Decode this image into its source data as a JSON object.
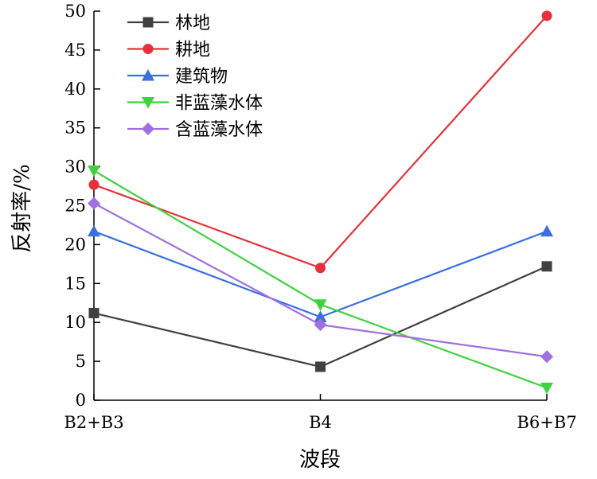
{
  "chart_data": {
    "type": "line",
    "title": "",
    "xlabel": "波段",
    "ylabel": "反射率/%",
    "categories": [
      "B2+B3",
      "B4",
      "B6+B7"
    ],
    "ylim": [
      0,
      50
    ],
    "yticks": [
      0,
      5,
      10,
      15,
      20,
      25,
      30,
      35,
      40,
      45,
      50
    ],
    "grid": false,
    "legend_position": "top-left",
    "series": [
      {
        "name": "林地",
        "values": [
          11.2,
          4.3,
          17.2
        ],
        "color": "#404040",
        "marker": "square"
      },
      {
        "name": "耕地",
        "values": [
          27.7,
          17.0,
          49.4
        ],
        "color": "#e8303a",
        "marker": "circle"
      },
      {
        "name": "建筑物",
        "values": [
          21.7,
          10.7,
          21.7
        ],
        "color": "#3a6fe0",
        "marker": "triangle-up"
      },
      {
        "name": "非蓝藻水体",
        "values": [
          29.5,
          12.3,
          1.6
        ],
        "color": "#3fd23f",
        "marker": "triangle-down"
      },
      {
        "name": "含蓝藻水体",
        "values": [
          25.3,
          9.7,
          5.6
        ],
        "color": "#a070e0",
        "marker": "diamond"
      }
    ]
  }
}
